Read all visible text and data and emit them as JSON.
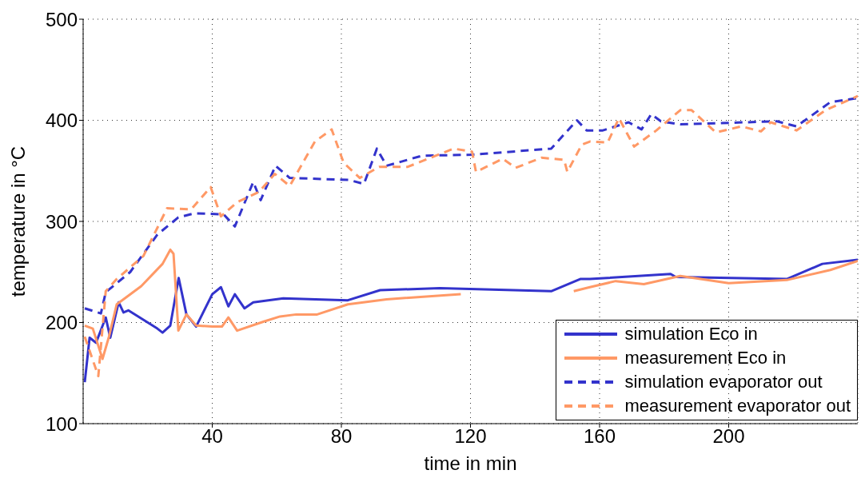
{
  "chart_data": {
    "type": "line",
    "xlabel": "time in min",
    "ylabel": "temperature in °C",
    "xlim": [
      0,
      240
    ],
    "xticks": [
      40,
      80,
      120,
      160,
      200
    ],
    "ylim": [
      100,
      500
    ],
    "yticks": [
      100,
      200,
      300,
      400,
      500
    ],
    "grid": true,
    "legend": "bottom right",
    "marker": "none",
    "series": [
      {
        "name": "simulation Eco in",
        "color": "#3333cc",
        "line_style": "solid",
        "x": [
          0.5,
          2,
          4,
          7,
          8.4,
          11,
          12.5,
          14,
          23,
          24.6,
          27,
          29.6,
          32,
          35,
          40,
          42.7,
          45,
          47,
          50,
          52.7,
          62,
          82,
          92,
          110.5,
          145,
          154,
          157,
          182,
          183.6,
          218,
          229,
          240
        ],
        "values": [
          141,
          185,
          180,
          205,
          185,
          220,
          210,
          212,
          194,
          190,
          197,
          244,
          208,
          196,
          228,
          235,
          216,
          228,
          214,
          220,
          224,
          222,
          232,
          234,
          231,
          243,
          243,
          248,
          245,
          243,
          258,
          262
        ]
      },
      {
        "name": "measurement Eco in",
        "color": "#ff9966",
        "line_style": "solid",
        "x": [
          0.5,
          3,
          6,
          8,
          10.4,
          18,
          24.6,
          27,
          28,
          29.5,
          32,
          35,
          40,
          43,
          45,
          47.7,
          56,
          61,
          66,
          72.5,
          82,
          94,
          117,
          125,
          135,
          145,
          152,
          157,
          165,
          173.7,
          185,
          200,
          218,
          231.5,
          240
        ],
        "values": [
          197,
          194,
          164,
          186,
          218,
          236,
          258,
          272,
          268,
          192,
          208,
          197,
          196,
          196,
          205,
          192,
          201,
          206,
          208,
          208,
          218,
          223,
          228,
          null,
          null,
          null,
          231,
          235,
          241,
          238,
          246,
          239,
          242,
          252,
          261
        ]
      },
      {
        "name": "simulation evaporator out",
        "color": "#3333cc",
        "line_style": "dashed",
        "x": [
          0.5,
          5.5,
          7,
          14.6,
          23,
          29.5,
          34.5,
          43.5,
          47,
          52.7,
          55,
          59.6,
          64,
          82.5,
          87,
          91,
          94,
          105,
          120.5,
          145,
          153,
          156,
          161,
          169,
          173,
          176,
          179,
          185,
          215,
          221,
          231.5,
          240
        ],
        "values": [
          214,
          209,
          230,
          250,
          287,
          304,
          308,
          307,
          295,
          339,
          321,
          355,
          343,
          341,
          337,
          372,
          355,
          365,
          366,
          372,
          400,
          390,
          390,
          398,
          391,
          406,
          399,
          396,
          399,
          394,
          418,
          422
        ]
      },
      {
        "name": "measurement evaporator out",
        "color": "#ff9966",
        "line_style": "dashed",
        "x": [
          0.5,
          4.7,
          7,
          10.4,
          18.7,
          26,
          33.5,
          39.5,
          42.7,
          47.7,
          54.4,
          59.4,
          64,
          71.8,
          77,
          80.7,
          85.7,
          91.7,
          100.6,
          114.8,
          120.5,
          121.7,
          130,
          134,
          142,
          149,
          150,
          154.5,
          157,
          162.5,
          166,
          170.7,
          177.6,
          185,
          188.5,
          196,
          204,
          210,
          213,
          221,
          230,
          240
        ],
        "values": [
          186,
          147,
          231,
          243,
          266,
          313,
          312,
          334,
          305,
          319,
          329,
          347,
          335,
          379,
          391,
          358,
          343,
          354,
          354,
          372,
          369,
          349,
          362,
          353,
          363,
          361,
          349,
          376,
          379,
          378,
          402,
          374,
          390,
          410,
          410,
          388,
          394,
          389,
          398,
          390,
          410,
          424
        ]
      }
    ]
  }
}
